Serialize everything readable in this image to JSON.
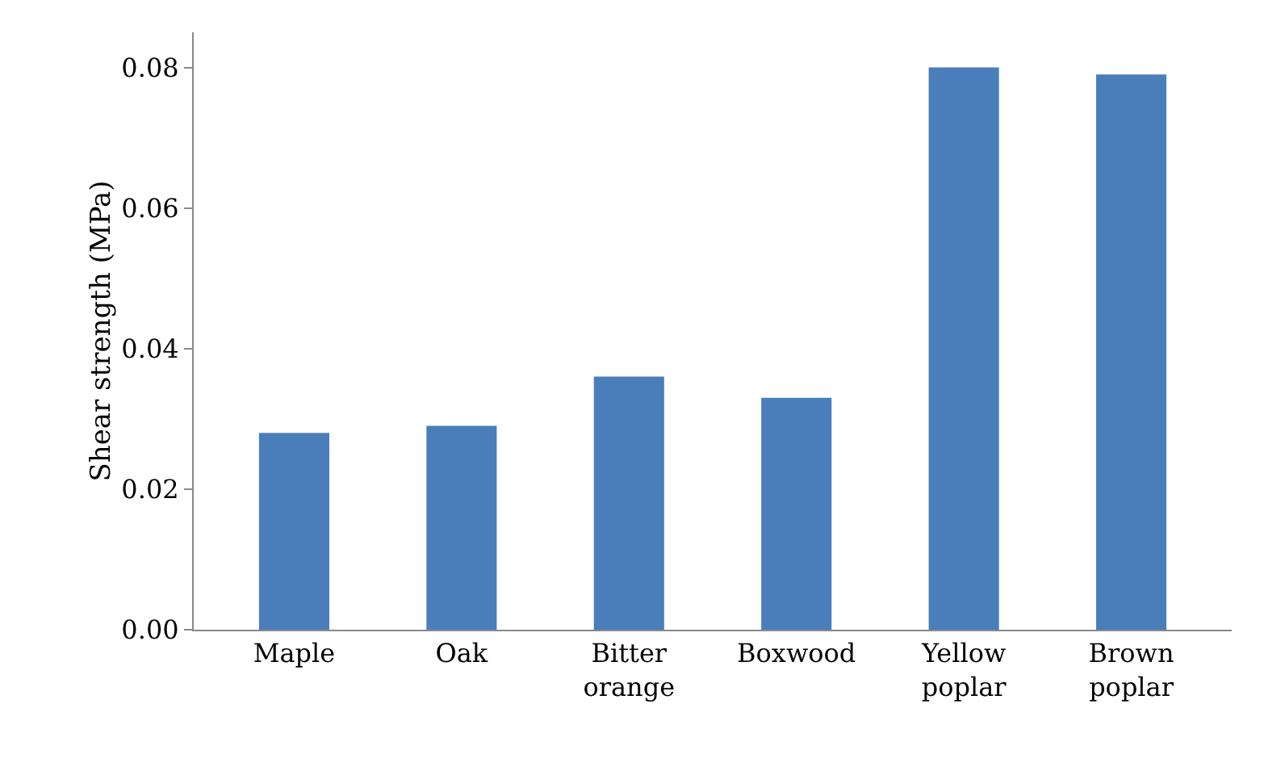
{
  "chart_data": {
    "type": "bar",
    "ylabel": "Shear strength (MPa)",
    "categories": [
      "Maple",
      "Oak",
      "Bitter orange",
      "Boxwood",
      "Yellow poplar",
      "Brown poplar"
    ],
    "values": [
      0.028,
      0.029,
      0.036,
      0.033,
      0.08,
      0.079
    ],
    "color": "#4a7ebb",
    "ylim": [
      0,
      0.085
    ],
    "yticks": [
      {
        "value": 0,
        "label": "0.00"
      },
      {
        "value": 0.02,
        "label": "0.02"
      },
      {
        "value": 0.04,
        "label": "0.04"
      },
      {
        "value": 0.06,
        "label": "0.06"
      },
      {
        "value": 0.08,
        "label": "0.08"
      }
    ],
    "grid": false
  }
}
